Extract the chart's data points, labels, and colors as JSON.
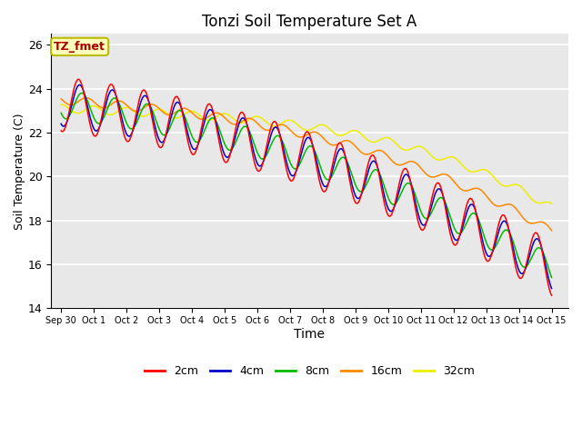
{
  "title": "Tonzi Soil Temperature Set A",
  "xlabel": "Time",
  "ylabel": "Soil Temperature (C)",
  "ylim": [
    14,
    26.5
  ],
  "xlim": [
    -0.3,
    15.5
  ],
  "bg_color": "#e8e8e8",
  "grid_color": "#ffffff",
  "series_colors": {
    "2cm": "#ff0000",
    "4cm": "#0000cc",
    "8cm": "#00bb00",
    "16cm": "#ff8800",
    "32cm": "#eeee00"
  },
  "linewidth": 1.1,
  "yticks": [
    14,
    16,
    18,
    20,
    22,
    24,
    26
  ],
  "xtick_labels": [
    "Sep 30",
    "Oct 1",
    "Oct 2",
    "Oct 3",
    "Oct 4",
    "Oct 5",
    "Oct 6",
    "Oct 7",
    "Oct 8",
    "Oct 9",
    "Oct 10",
    "Oct 11",
    "Oct 12",
    "Oct 13",
    "Oct 14",
    "Oct 15"
  ],
  "annotation": {
    "text": "TZ_fmet",
    "color": "#aa0000",
    "bg": "#ffffbb",
    "border": "#bbbb00"
  },
  "legend_labels": [
    "2cm",
    "4cm",
    "8cm",
    "16cm",
    "32cm"
  ],
  "legend_colors": [
    "#ff0000",
    "#0000cc",
    "#00bb00",
    "#ff8800",
    "#eeee00"
  ]
}
